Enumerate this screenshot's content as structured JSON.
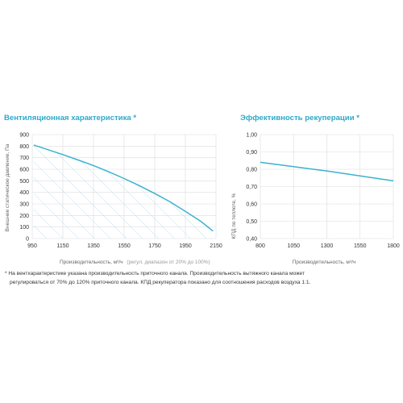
{
  "chart_data": [
    {
      "type": "area",
      "title": "Вентиляционная характеристика *",
      "xlabel": "Производительность, м³/ч",
      "xlabel_note": "(регул. диапазон от 20% до 100%)",
      "ylabel": "Внешнее статическое давление, Па",
      "xlim": [
        950,
        2150
      ],
      "ylim": [
        0,
        900
      ],
      "xticks": [
        950,
        1150,
        1350,
        1550,
        1750,
        1950,
        2150
      ],
      "yticks": [
        0,
        100,
        200,
        300,
        400,
        500,
        600,
        700,
        800,
        900
      ],
      "grid": true,
      "fill": "hatched",
      "series": [
        {
          "x": [
            960,
            1050,
            1150,
            1250,
            1350,
            1450,
            1550,
            1650,
            1750,
            1850,
            1950,
            2050,
            2130
          ],
          "y": [
            810,
            770,
            727,
            680,
            632,
            578,
            520,
            458,
            390,
            318,
            235,
            150,
            65
          ]
        }
      ]
    },
    {
      "type": "line",
      "title": "Эффективность рекуперации *",
      "xlabel": "Производительность, м³/ч",
      "ylabel": "КПД по теплоте, %",
      "xlim": [
        800,
        1800
      ],
      "ylim": [
        0.4,
        1.0
      ],
      "xticks": [
        800,
        1050,
        1300,
        1550,
        1800
      ],
      "yticks": [
        "0,40",
        "0,50",
        "0,60",
        "0,70",
        "0,80",
        "0,90",
        "1,00"
      ],
      "grid": true,
      "series": [
        {
          "x": [
            800,
            1050,
            1300,
            1550,
            1800
          ],
          "y": [
            0.84,
            0.815,
            0.79,
            0.762,
            0.733
          ]
        }
      ]
    }
  ],
  "footnote": {
    "line1": "* На вентхарактеристике указана производительность приточного канала. Производительность вытяжного канала может",
    "line2": "регулироваться от 70% до 120% приточного канала. КПД рекуператора показано для соотношения расходов воздуха 1:1."
  },
  "colors": {
    "line": "#3bb2d0",
    "grid": "#dcdcdc",
    "title": "#2ea9c9",
    "hatch": "#b9dce8"
  }
}
